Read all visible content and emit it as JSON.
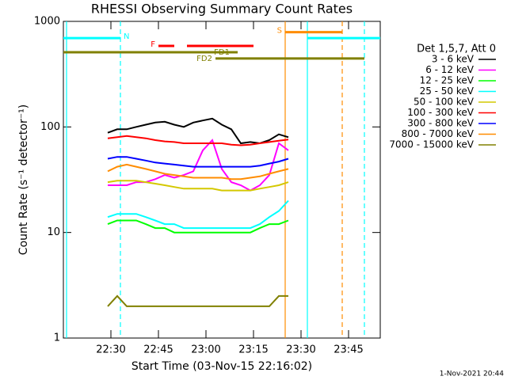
{
  "chart_data": {
    "type": "line",
    "title": "RHESSI Observing Summary Count Rates",
    "xlabel": "Start Time (03-Nov-15 22:16:02)",
    "ylabel": "Count Rate (s⁻¹ detector⁻¹)",
    "legend_title": "Det 1,5,7, Att 0",
    "footer": "1-Nov-2021 20:44",
    "log_y": true,
    "xlim": [
      "22:15",
      "23:55"
    ],
    "xticks": [
      "22:30",
      "22:45",
      "23:00",
      "23:15",
      "23:30",
      "23:45"
    ],
    "ylim": [
      1,
      1000
    ],
    "yticks": [
      1,
      10,
      100,
      1000
    ],
    "x": [
      "22:29",
      "22:32",
      "22:35",
      "22:38",
      "22:41",
      "22:44",
      "22:47",
      "22:50",
      "22:53",
      "22:56",
      "22:59",
      "23:02",
      "23:05",
      "23:08",
      "23:11",
      "23:14",
      "23:17",
      "23:20",
      "23:23",
      "23:26"
    ],
    "series": [
      {
        "name": "3 - 6 keV",
        "color": "#000000",
        "values": [
          88,
          95,
          95,
          100,
          105,
          110,
          112,
          105,
          100,
          110,
          115,
          120,
          105,
          95,
          70,
          72,
          70,
          75,
          85,
          80
        ]
      },
      {
        "name": "6 - 12 keV",
        "color": "#ff00ff",
        "values": [
          28,
          28,
          28,
          30,
          30,
          32,
          35,
          33,
          35,
          38,
          60,
          75,
          40,
          30,
          28,
          25,
          28,
          35,
          70,
          60
        ]
      },
      {
        "name": "12 - 25 keV",
        "color": "#00ff00",
        "values": [
          12,
          13,
          13,
          13,
          12,
          11,
          11,
          10,
          10,
          10,
          10,
          10,
          10,
          10,
          10,
          10,
          11,
          12,
          12,
          13
        ]
      },
      {
        "name": "25 - 50 keV",
        "color": "#00ffff",
        "values": [
          14,
          15,
          15,
          15,
          14,
          13,
          12,
          12,
          11,
          11,
          11,
          11,
          11,
          11,
          11,
          11,
          12,
          14,
          16,
          20
        ]
      },
      {
        "name": "50 - 100 keV",
        "color": "#d4c800",
        "values": [
          30,
          31,
          31,
          31,
          30,
          29,
          28,
          27,
          26,
          26,
          26,
          26,
          25,
          25,
          25,
          25,
          26,
          27,
          28,
          30
        ]
      },
      {
        "name": "100 - 300 keV",
        "color": "#ff0000",
        "values": [
          78,
          80,
          82,
          80,
          78,
          75,
          73,
          72,
          70,
          70,
          70,
          70,
          70,
          68,
          67,
          68,
          70,
          72,
          74,
          76
        ]
      },
      {
        "name": "300 - 800 keV",
        "color": "#0000ff",
        "values": [
          50,
          52,
          52,
          50,
          48,
          46,
          45,
          44,
          43,
          42,
          42,
          42,
          42,
          42,
          42,
          42,
          43,
          45,
          47,
          50
        ]
      },
      {
        "name": "800 - 7000 keV",
        "color": "#ff8c00",
        "values": [
          38,
          42,
          44,
          42,
          40,
          38,
          36,
          35,
          34,
          33,
          33,
          33,
          33,
          32,
          32,
          33,
          34,
          36,
          38,
          40
        ]
      },
      {
        "name": "7000 - 15000 keV",
        "color": "#808000",
        "values": [
          2,
          2.5,
          2,
          2,
          2,
          2,
          2,
          2,
          2,
          2,
          2,
          2,
          2,
          2,
          2,
          2,
          2,
          2,
          2.5,
          2.5
        ]
      }
    ],
    "annotations": [
      {
        "label": "N",
        "color": "#00ffff",
        "level": 695,
        "segments": [
          [
            "22:15",
            "22:33"
          ],
          [
            "23:32",
            "23:55"
          ]
        ]
      },
      {
        "label": "F",
        "color": "#ff0000",
        "level": 585,
        "segments": [
          [
            "22:45",
            "22:50"
          ],
          [
            "22:54",
            "23:15"
          ]
        ]
      },
      {
        "label": "S",
        "color": "#ff8c00",
        "level": 790,
        "segments": [
          [
            "23:25",
            "23:43"
          ]
        ]
      },
      {
        "label": "FD1",
        "color": "#808000",
        "level": 510,
        "segments": [
          [
            "22:15",
            "23:10"
          ]
        ]
      },
      {
        "label": "FD2",
        "color": "#808000",
        "level": 445,
        "segments": [
          [
            "23:03",
            "23:50"
          ]
        ]
      }
    ],
    "vlines": [
      {
        "time": "22:16",
        "color": "#00ffff",
        "dashed": false
      },
      {
        "time": "22:33",
        "color": "#00ffff",
        "dashed": true
      },
      {
        "time": "23:25",
        "color": "#ff8c00",
        "dashed": false
      },
      {
        "time": "23:32",
        "color": "#00ffff",
        "dashed": false
      },
      {
        "time": "23:43",
        "color": "#ff8c00",
        "dashed": true
      },
      {
        "time": "23:50",
        "color": "#00ffff",
        "dashed": true
      }
    ]
  }
}
